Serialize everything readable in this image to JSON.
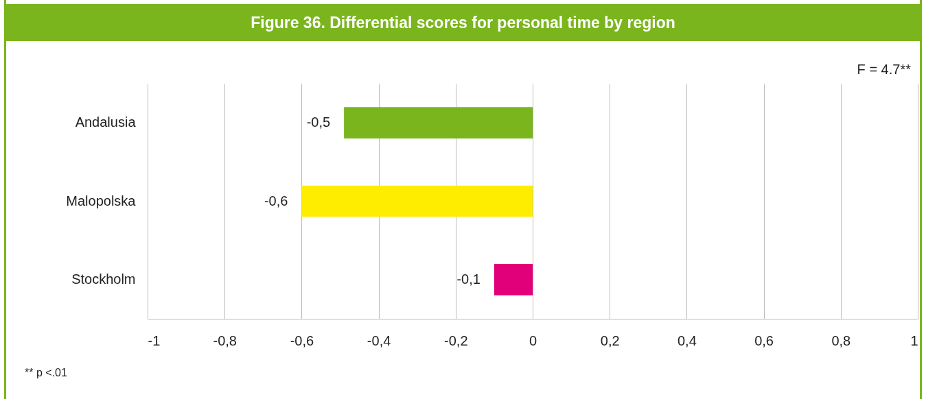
{
  "chart_data": {
    "type": "bar",
    "orientation": "horizontal",
    "title": "Figure 36. Differential scores for personal time by region",
    "categories": [
      "Andalusia",
      "Malopolska",
      "Stockholm"
    ],
    "values": [
      -0.49,
      -0.6,
      -0.1
    ],
    "colors": [
      "#7ab51d",
      "#ffed00",
      "#e2007a"
    ],
    "value_labels": [
      "-0,5",
      "-0,6",
      "-0,1"
    ],
    "xlim": [
      -1,
      1
    ],
    "xticks": [
      {
        "value": -1,
        "label": "-1"
      },
      {
        "value": -0.8,
        "label": "-0,8"
      },
      {
        "value": -0.6,
        "label": "-0,6"
      },
      {
        "value": -0.4,
        "label": "-0,4"
      },
      {
        "value": -0.2,
        "label": "-0,2"
      },
      0,
      {
        "value": 0.2,
        "label": "0,2"
      },
      {
        "value": 0.4,
        "label": "0,4"
      },
      {
        "value": 0.6,
        "label": "0,6"
      },
      {
        "value": 0.8,
        "label": "0,8"
      },
      1
    ],
    "grid": "x",
    "annotations": [
      "F = 4.7**",
      "** p <.01"
    ]
  }
}
